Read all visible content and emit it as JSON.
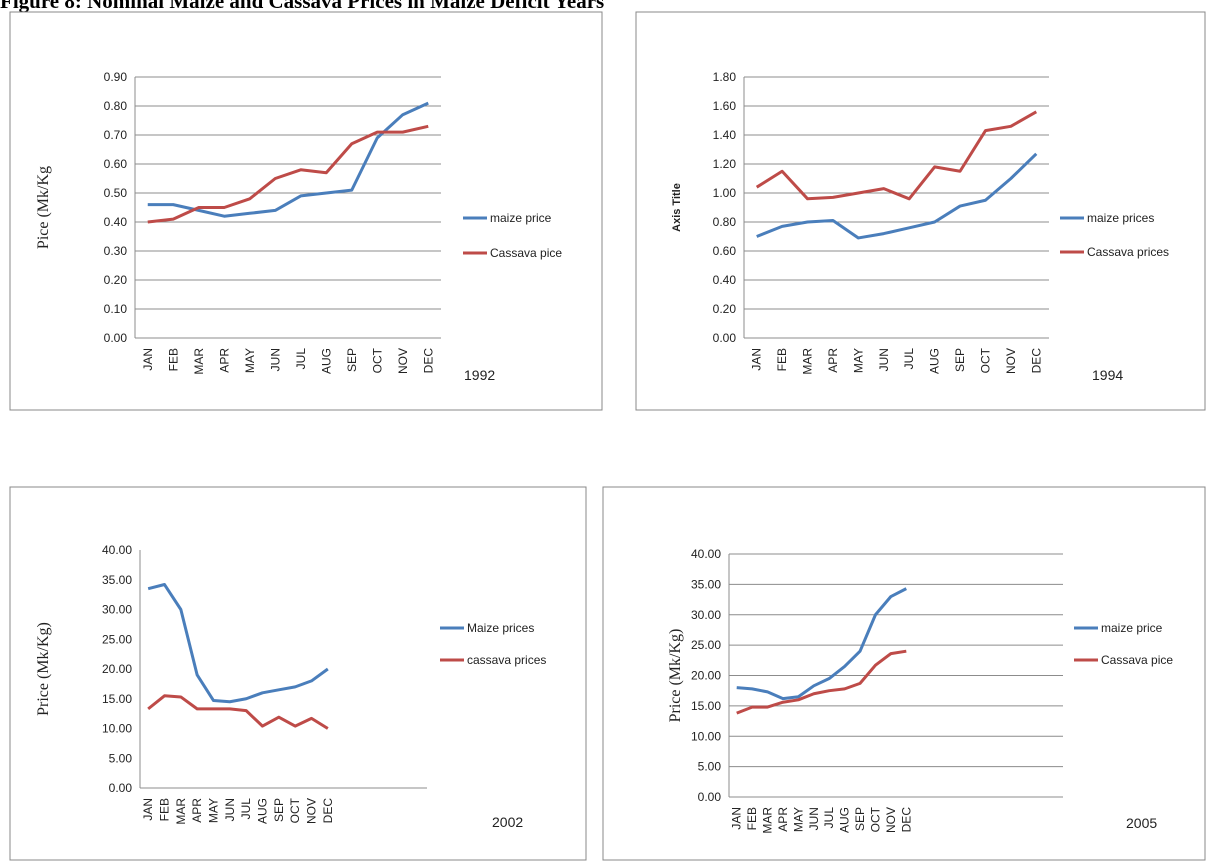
{
  "title": "Figure 8: Nominal Maize and Cassava Prices in Maize Deficit Years",
  "chart_data": [
    {
      "type": "line",
      "year": "1992",
      "ylabel": "Pice (Mk/Kg",
      "categories": [
        "JAN",
        "FEB",
        "MAR",
        "APR",
        "MAY",
        "JUN",
        "JUL",
        "AUG",
        "SEP",
        "OCT",
        "NOV",
        "DEC"
      ],
      "series": [
        {
          "name": "maize price",
          "color": "#4a7ebb",
          "values": [
            0.46,
            0.46,
            0.44,
            0.42,
            0.43,
            0.44,
            0.49,
            0.5,
            0.51,
            0.69,
            0.77,
            0.81
          ]
        },
        {
          "name": "Cassava pice",
          "color": "#be4b48",
          "values": [
            0.4,
            0.41,
            0.45,
            0.45,
            0.48,
            0.55,
            0.58,
            0.57,
            0.67,
            0.71,
            0.71,
            0.73
          ]
        }
      ],
      "ylim": [
        0,
        0.9
      ],
      "yticks": [
        {
          "value": 0,
          "label": "0.00"
        },
        {
          "value": 0.1,
          "label": "0.10"
        },
        {
          "value": 0.2,
          "label": "0.20"
        },
        {
          "value": 0.3,
          "label": "0.30"
        },
        {
          "value": 0.4,
          "label": "0.40"
        },
        {
          "value": 0.5,
          "label": "0.50"
        },
        {
          "value": 0.6,
          "label": "0.60"
        },
        {
          "value": 0.7,
          "label": "0.70"
        },
        {
          "value": 0.8,
          "label": "0.80"
        },
        {
          "value": 0.9,
          "label": "0.90"
        }
      ],
      "grid": true
    },
    {
      "type": "line",
      "year": "1994",
      "ylabel": "Axis Title",
      "categories": [
        "JAN",
        "FEB",
        "MAR",
        "APR",
        "MAY",
        "JUN",
        "JUL",
        "AUG",
        "SEP",
        "OCT",
        "NOV",
        "DEC"
      ],
      "series": [
        {
          "name": "maize prices",
          "color": "#4a7ebb",
          "values": [
            0.7,
            0.77,
            0.8,
            0.81,
            0.69,
            0.72,
            0.76,
            0.8,
            0.91,
            0.95,
            1.1,
            1.27
          ]
        },
        {
          "name": "Cassava prices",
          "color": "#be4b48",
          "values": [
            1.04,
            1.15,
            0.96,
            0.97,
            1.0,
            1.03,
            0.96,
            1.18,
            1.15,
            1.43,
            1.46,
            1.56
          ]
        }
      ],
      "ylim": [
        0,
        1.8
      ],
      "yticks": [
        {
          "value": 0,
          "label": "0.00"
        },
        {
          "value": 0.2,
          "label": "0.20"
        },
        {
          "value": 0.4,
          "label": "0.40"
        },
        {
          "value": 0.6,
          "label": "0.60"
        },
        {
          "value": 0.8,
          "label": "0.80"
        },
        {
          "value": 1.0,
          "label": "1.00"
        },
        {
          "value": 1.2,
          "label": "1.20"
        },
        {
          "value": 1.4,
          "label": "1.40"
        },
        {
          "value": 1.6,
          "label": "1.60"
        },
        {
          "value": 1.8,
          "label": "1.80"
        }
      ],
      "grid": true
    },
    {
      "type": "line",
      "year": "2002",
      "ylabel": "Price (Mk/Kg)",
      "categories": [
        "JAN",
        "FEB",
        "MAR",
        "APR",
        "MAY",
        "JUN",
        "JUL",
        "AUG",
        "SEP",
        "OCT",
        "NOV",
        "DEC"
      ],
      "series": [
        {
          "name": "Maize prices",
          "color": "#4a7ebb",
          "values": [
            33.5,
            34.2,
            30,
            19,
            14.7,
            14.5,
            15,
            16,
            16.5,
            17,
            18,
            20
          ]
        },
        {
          "name": "cassava prices",
          "color": "#be4b48",
          "values": [
            13.3,
            15.5,
            15.3,
            13.3,
            13.3,
            13.3,
            13,
            10.4,
            11.9,
            10.4,
            11.7,
            10
          ]
        }
      ],
      "ylim": [
        0,
        40
      ],
      "yticks": [
        {
          "value": 0,
          "label": "0.00"
        },
        {
          "value": 5,
          "label": "5.00"
        },
        {
          "value": 10,
          "label": "10.00"
        },
        {
          "value": 15,
          "label": "15.00"
        },
        {
          "value": 20,
          "label": "20.00"
        },
        {
          "value": 25,
          "label": "25.00"
        },
        {
          "value": 30,
          "label": "30.00"
        },
        {
          "value": 35,
          "label": "35.00"
        },
        {
          "value": 40,
          "label": "40.00"
        }
      ],
      "grid": false
    },
    {
      "type": "line",
      "year": "2005",
      "ylabel": "Price (Mk/Kg)",
      "categories": [
        "JAN",
        "FEB",
        "MAR",
        "APR",
        "MAY",
        "JUN",
        "JUL",
        "AUG",
        "SEP",
        "OCT",
        "NOV",
        "DEC"
      ],
      "series": [
        {
          "name": "maize price",
          "color": "#4a7ebb",
          "values": [
            18,
            17.8,
            17.3,
            16.2,
            16.5,
            18.3,
            19.5,
            21.5,
            24,
            30,
            33,
            34.3
          ]
        },
        {
          "name": "Cassava pice",
          "color": "#be4b48",
          "values": [
            13.8,
            14.8,
            14.8,
            15.6,
            16,
            17,
            17.5,
            17.8,
            18.7,
            21.7,
            23.6,
            24
          ]
        }
      ],
      "ylim": [
        0,
        40
      ],
      "yticks": [
        {
          "value": 0,
          "label": "0.00"
        },
        {
          "value": 5,
          "label": "5.00"
        },
        {
          "value": 10,
          "label": "10.00"
        },
        {
          "value": 15,
          "label": "15.00"
        },
        {
          "value": 20,
          "label": "20.00"
        },
        {
          "value": 25,
          "label": "25.00"
        },
        {
          "value": 30,
          "label": "30.00"
        },
        {
          "value": 35,
          "label": "35.00"
        },
        {
          "value": 40,
          "label": "40.00"
        }
      ],
      "grid": true
    }
  ]
}
